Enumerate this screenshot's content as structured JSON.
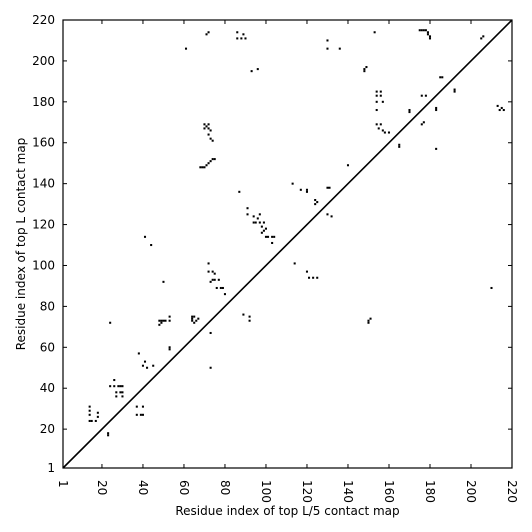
{
  "chart_data": {
    "type": "scatter",
    "xlabel": "Residue index of top L/5 contact map",
    "ylabel": "Residue index of top L contact map",
    "xlim": [
      1,
      220
    ],
    "ylim": [
      1,
      220
    ],
    "xticks": [
      1,
      20,
      40,
      60,
      80,
      100,
      120,
      140,
      160,
      180,
      200,
      220
    ],
    "yticks": [
      1,
      20,
      40,
      60,
      80,
      100,
      120,
      140,
      160,
      180,
      200,
      220
    ],
    "xtick_rotation": -90,
    "grid": false,
    "diagonal": true,
    "marker_color": "#000000",
    "series": [
      {
        "points": [
          [
            14,
            31
          ],
          [
            14,
            29
          ],
          [
            14,
            27
          ],
          [
            14,
            24
          ],
          [
            15,
            24
          ],
          [
            17,
            24
          ],
          [
            18,
            26
          ],
          [
            18,
            28
          ],
          [
            23,
            18
          ],
          [
            23,
            17
          ],
          [
            24,
            72
          ],
          [
            24,
            41
          ],
          [
            26,
            44
          ],
          [
            26,
            41
          ],
          [
            27,
            38
          ],
          [
            27,
            36
          ],
          [
            28,
            41
          ],
          [
            29,
            41
          ],
          [
            29,
            38
          ],
          [
            30,
            36
          ],
          [
            30,
            38
          ],
          [
            30,
            41
          ],
          [
            37,
            31
          ],
          [
            37,
            27
          ],
          [
            38,
            57
          ],
          [
            39,
            27
          ],
          [
            40,
            27
          ],
          [
            40,
            31
          ],
          [
            40,
            51
          ],
          [
            41,
            114
          ],
          [
            41,
            53
          ],
          [
            42,
            50
          ],
          [
            44,
            110
          ],
          [
            45,
            51
          ],
          [
            48,
            73
          ],
          [
            48,
            71
          ],
          [
            49,
            73
          ],
          [
            49,
            72
          ],
          [
            50,
            92
          ],
          [
            50,
            73
          ],
          [
            51,
            73
          ],
          [
            53,
            75
          ],
          [
            53,
            73
          ],
          [
            53,
            60
          ],
          [
            53,
            59
          ],
          [
            61,
            206
          ],
          [
            64,
            75
          ],
          [
            64,
            74
          ],
          [
            64,
            73
          ],
          [
            65,
            75
          ],
          [
            65,
            72
          ],
          [
            66,
            73
          ],
          [
            67,
            74
          ],
          [
            68,
            148
          ],
          [
            69,
            148
          ],
          [
            70,
            148
          ],
          [
            71,
            149
          ],
          [
            72,
            150
          ],
          [
            73,
            151
          ],
          [
            74,
            152
          ],
          [
            75,
            152
          ],
          [
            71,
            213
          ],
          [
            72,
            214
          ],
          [
            70,
            169
          ],
          [
            70,
            167
          ],
          [
            71,
            168
          ],
          [
            72,
            169
          ],
          [
            72,
            167
          ],
          [
            72,
            164
          ],
          [
            73,
            162
          ],
          [
            73,
            166
          ],
          [
            74,
            161
          ],
          [
            72,
            101
          ],
          [
            72,
            97
          ],
          [
            73,
            92
          ],
          [
            73,
            67
          ],
          [
            73,
            50
          ],
          [
            74,
            97
          ],
          [
            74,
            93
          ],
          [
            75,
            96
          ],
          [
            75,
            93
          ],
          [
            76,
            89
          ],
          [
            77,
            93
          ],
          [
            78,
            89
          ],
          [
            79,
            89
          ],
          [
            80,
            86
          ],
          [
            86,
            214
          ],
          [
            86,
            211
          ],
          [
            87,
            136
          ],
          [
            88,
            211
          ],
          [
            89,
            213
          ],
          [
            89,
            76
          ],
          [
            90,
            211
          ],
          [
            91,
            128
          ],
          [
            91,
            125
          ],
          [
            92,
            75
          ],
          [
            92,
            73
          ],
          [
            93,
            195
          ],
          [
            94,
            124
          ],
          [
            94,
            121
          ],
          [
            95,
            121
          ],
          [
            96,
            196
          ],
          [
            96,
            123
          ],
          [
            97,
            125
          ],
          [
            97,
            121
          ],
          [
            98,
            119
          ],
          [
            98,
            116
          ],
          [
            99,
            121
          ],
          [
            99,
            117
          ],
          [
            100,
            118
          ],
          [
            100,
            114
          ],
          [
            101,
            114
          ],
          [
            103,
            114
          ],
          [
            103,
            111
          ],
          [
            104,
            114
          ],
          [
            113,
            140
          ],
          [
            114,
            101
          ],
          [
            117,
            137
          ],
          [
            120,
            137
          ],
          [
            120,
            136
          ],
          [
            120,
            97
          ],
          [
            121,
            94
          ],
          [
            123,
            94
          ],
          [
            124,
            132
          ],
          [
            124,
            130
          ],
          [
            125,
            131
          ],
          [
            125,
            94
          ],
          [
            130,
            210
          ],
          [
            130,
            206
          ],
          [
            130,
            138
          ],
          [
            130,
            125
          ],
          [
            131,
            138
          ],
          [
            132,
            124
          ],
          [
            136,
            206
          ],
          [
            140,
            149
          ],
          [
            148,
            196
          ],
          [
            148,
            195
          ],
          [
            149,
            197
          ],
          [
            150,
            73
          ],
          [
            150,
            72
          ],
          [
            151,
            74
          ],
          [
            153,
            214
          ],
          [
            154,
            185
          ],
          [
            154,
            183
          ],
          [
            154,
            180
          ],
          [
            154,
            176
          ],
          [
            154,
            169
          ],
          [
            155,
            167
          ],
          [
            156,
            185
          ],
          [
            156,
            183
          ],
          [
            156,
            169
          ],
          [
            157,
            180
          ],
          [
            157,
            166
          ],
          [
            158,
            165
          ],
          [
            160,
            165
          ],
          [
            165,
            159
          ],
          [
            165,
            158
          ],
          [
            170,
            175
          ],
          [
            170,
            176
          ],
          [
            175,
            215
          ],
          [
            176,
            215
          ],
          [
            177,
            215
          ],
          [
            178,
            215
          ],
          [
            179,
            214
          ],
          [
            179,
            213
          ],
          [
            180,
            212
          ],
          [
            180,
            211
          ],
          [
            176,
            183
          ],
          [
            177,
            170
          ],
          [
            178,
            183
          ],
          [
            176,
            169
          ],
          [
            183,
            177
          ],
          [
            183,
            176
          ],
          [
            183,
            157
          ],
          [
            185,
            192
          ],
          [
            186,
            192
          ],
          [
            192,
            186
          ],
          [
            192,
            185
          ],
          [
            205,
            211
          ],
          [
            206,
            212
          ],
          [
            210,
            89
          ],
          [
            213,
            178
          ],
          [
            214,
            176
          ],
          [
            215,
            177
          ],
          [
            216,
            176
          ]
        ]
      }
    ]
  }
}
